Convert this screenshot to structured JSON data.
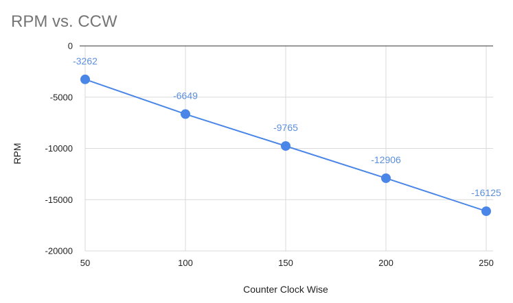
{
  "chart_data": {
    "type": "line",
    "title": "RPM vs. CCW",
    "xlabel": "Counter Clock Wise",
    "ylabel": "RPM",
    "x": [
      50,
      100,
      150,
      200,
      250
    ],
    "xlim": [
      50,
      250
    ],
    "ylim": [
      -20000,
      0
    ],
    "x_ticks": [
      50,
      100,
      150,
      200,
      250
    ],
    "y_ticks": [
      0,
      -5000,
      -10000,
      -15000,
      -20000
    ],
    "grid": true,
    "legend": "none",
    "series": [
      {
        "values": [
          -3262,
          -6649,
          -9765,
          -12906,
          -16125
        ],
        "labels": [
          "-3262",
          "-6649",
          "-9765",
          "-12906",
          "-16125"
        ],
        "color": "#4a86e8",
        "label_color": "#5b8fde",
        "markers": true
      }
    ]
  }
}
